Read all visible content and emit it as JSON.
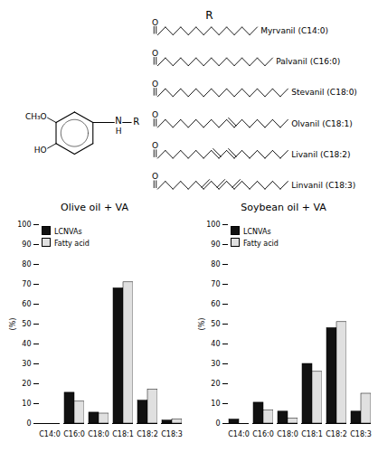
{
  "chart_data": [
    {
      "type": "diagram",
      "annotations": [
        "R",
        "CH₃O",
        "HO",
        "N",
        "H",
        "R",
        "O",
        "Myrvanil (C14:0)",
        "Palvanil (C16:0)",
        "Stevanil (C18:0)",
        "Olvanil (C18:1)",
        "Livanil (C18:2)",
        "Linvanil (C18:3)"
      ]
    },
    {
      "type": "bar",
      "title": "Olive oil + VA",
      "categories": [
        "C14:0",
        "C16:0",
        "C18:0",
        "C18:1",
        "C18:2",
        "C18:3"
      ],
      "series": [
        {
          "name": "LCNVAs",
          "color": "#111111",
          "values": [
            0,
            15.5,
            5.5,
            68,
            11.5,
            1.5
          ]
        },
        {
          "name": "Fatty acid",
          "color": "#e0e0e0",
          "values": [
            0,
            11,
            5,
            71,
            17,
            2
          ]
        }
      ],
      "ylabel": "(%)",
      "ylim": [
        0,
        100
      ],
      "yticks": [
        0,
        10,
        20,
        30,
        40,
        50,
        60,
        70,
        80,
        90,
        100
      ],
      "legend": "upper left"
    },
    {
      "type": "bar",
      "title": "Soybean oil + VA",
      "categories": [
        "C14:0",
        "C16:0",
        "C18:0",
        "C18:1",
        "C18:2",
        "C18:3"
      ],
      "series": [
        {
          "name": "LCNVAs",
          "color": "#111111",
          "values": [
            2,
            10.5,
            6,
            30,
            48,
            6
          ]
        },
        {
          "name": "Fatty acid",
          "color": "#e0e0e0",
          "values": [
            0,
            6.5,
            2.5,
            26,
            51,
            15
          ]
        }
      ],
      "ylabel": "(%)",
      "ylim": [
        0,
        100
      ],
      "yticks": [
        0,
        10,
        20,
        30,
        40,
        50,
        60,
        70,
        80,
        90,
        100
      ],
      "legend": "upper left"
    }
  ]
}
